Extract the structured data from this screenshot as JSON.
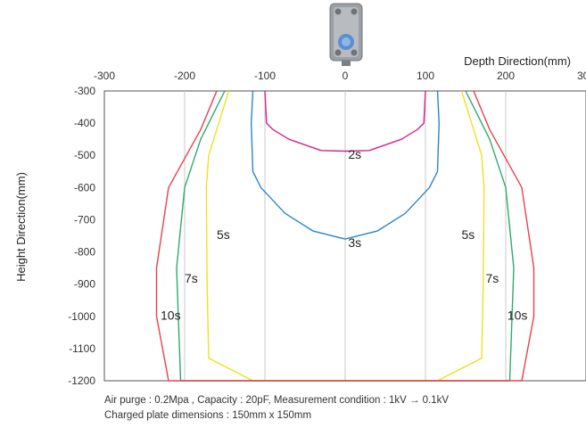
{
  "chart_data": {
    "type": "line",
    "xlabel": "Depth Direction(mm)",
    "ylabel": "Height Direction(mm)",
    "xlim": [
      -300,
      300
    ],
    "ylim": [
      -1200,
      -300
    ],
    "x_ticks": [
      "-300",
      "-200",
      "-100",
      "0",
      "100",
      "200",
      "300"
    ],
    "y_ticks": [
      "-300",
      "-400",
      "-500",
      "-600",
      "-700",
      "-800",
      "-900",
      "-1000",
      "-1100",
      "-1200"
    ],
    "grid_x": [
      -200,
      -100,
      100,
      200
    ],
    "grid_y_center": 0,
    "series": [
      {
        "label": "2s",
        "color": "#d6208a",
        "points": [
          [
            -100,
            -300
          ],
          [
            -98,
            -400
          ],
          [
            -90,
            -420
          ],
          [
            -70,
            -450
          ],
          [
            -30,
            -485
          ],
          [
            0,
            -487
          ],
          [
            30,
            -485
          ],
          [
            70,
            -450
          ],
          [
            90,
            -420
          ],
          [
            98,
            -400
          ],
          [
            100,
            -300
          ]
        ]
      },
      {
        "label": "3s",
        "color": "#2a86c8",
        "points": [
          [
            -115,
            -300
          ],
          [
            -117,
            -400
          ],
          [
            -115,
            -550
          ],
          [
            -105,
            -600
          ],
          [
            -75,
            -680
          ],
          [
            -40,
            -735
          ],
          [
            0,
            -760
          ],
          [
            40,
            -735
          ],
          [
            75,
            -680
          ],
          [
            105,
            -600
          ],
          [
            115,
            -550
          ],
          [
            117,
            -400
          ],
          [
            115,
            -300
          ]
        ]
      },
      {
        "label": "5s",
        "color": "#f0e020",
        "points": [
          [
            -145,
            -300
          ],
          [
            -155,
            -380
          ],
          [
            -170,
            -500
          ],
          [
            -173,
            -600
          ],
          [
            -172,
            -900
          ],
          [
            -170,
            -1130
          ],
          [
            -115,
            -1200
          ],
          [
            115,
            -1200
          ],
          [
            170,
            -1130
          ],
          [
            172,
            -900
          ],
          [
            173,
            -600
          ],
          [
            170,
            -500
          ],
          [
            155,
            -380
          ],
          [
            145,
            -300
          ]
        ]
      },
      {
        "label": "7s",
        "color": "#2cab6c",
        "points": [
          [
            -150,
            -300
          ],
          [
            -180,
            -450
          ],
          [
            -200,
            -600
          ],
          [
            -210,
            -850
          ],
          [
            -205,
            -1200
          ],
          [
            205,
            -1200
          ],
          [
            210,
            -850
          ],
          [
            200,
            -600
          ],
          [
            180,
            -450
          ],
          [
            150,
            -300
          ]
        ]
      },
      {
        "label": "10s",
        "color": "#e8414b",
        "points": [
          [
            -160,
            -300
          ],
          [
            -180,
            -420
          ],
          [
            -220,
            -600
          ],
          [
            -235,
            -850
          ],
          [
            -235,
            -1000
          ],
          [
            -220,
            -1200
          ],
          [
            220,
            -1200
          ],
          [
            235,
            -1000
          ],
          [
            235,
            -850
          ],
          [
            220,
            -600
          ],
          [
            180,
            -420
          ],
          [
            160,
            -300
          ]
        ]
      }
    ],
    "annotations": [
      {
        "text": "2s",
        "x": 12,
        "y": -510,
        "anchor": "middle"
      },
      {
        "text": "3s",
        "x": 12,
        "y": -785,
        "anchor": "middle"
      },
      {
        "text": "5s",
        "x": -160,
        "y": -760,
        "anchor": "start"
      },
      {
        "text": "5s",
        "x": 145,
        "y": -760,
        "anchor": "start"
      },
      {
        "text": "7s",
        "x": -200,
        "y": -895,
        "anchor": "start"
      },
      {
        "text": "7s",
        "x": 175,
        "y": -895,
        "anchor": "start"
      },
      {
        "text": "10s",
        "x": -230,
        "y": -1010,
        "anchor": "start"
      },
      {
        "text": "10s",
        "x": 202,
        "y": -1010,
        "anchor": "start"
      }
    ]
  },
  "caption": {
    "line1": "Air purge : 0.2Mpa , Capacity : 20pF, Measurement condition : 1kV → 0.1kV",
    "line2": "Charged plate dimensions : 150mm x 150mm"
  },
  "device_icon": "ionizer-device-icon"
}
